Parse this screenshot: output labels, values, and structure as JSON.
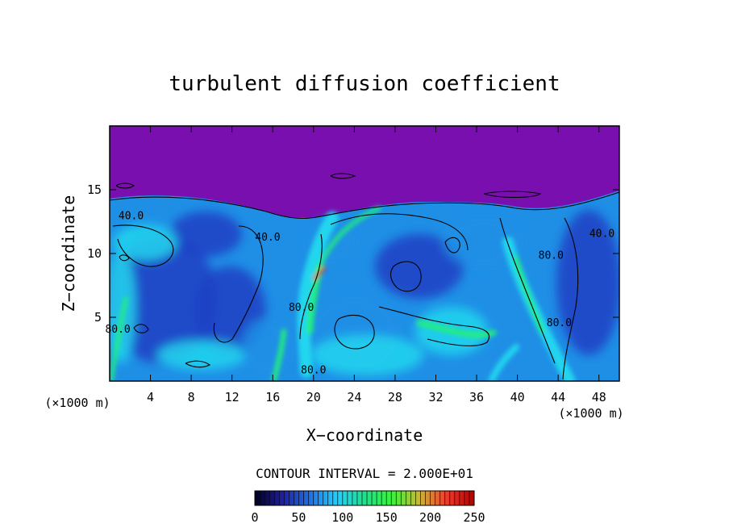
{
  "chart_data": {
    "type": "heatmap",
    "title": "turbulent diffusion coefficient",
    "xlabel": "X−coordinate",
    "ylabel": "Z−coordinate",
    "x_unit": "(×1000 m)",
    "z_unit": "(×1000 m)",
    "xlim": [
      0,
      50
    ],
    "zlim": [
      0,
      20
    ],
    "x_ticks": [
      4,
      8,
      12,
      16,
      20,
      24,
      28,
      32,
      36,
      40,
      44,
      48
    ],
    "z_ticks": [
      5,
      10,
      15
    ],
    "contour_interval_text": "CONTOUR INTERVAL = 2.000E+01",
    "contour_labels": [
      {
        "text": "40.0",
        "x": 2.1,
        "z": 12.7
      },
      {
        "text": "40.0",
        "x": 15.5,
        "z": 11.0
      },
      {
        "text": "80.0",
        "x": 18.8,
        "z": 5.5
      },
      {
        "text": "80.0",
        "x": 20.0,
        "z": 0.6
      },
      {
        "text": "80.0",
        "x": 0.8,
        "z": 3.8
      },
      {
        "text": "40.0",
        "x": 48.3,
        "z": 11.3
      },
      {
        "text": "80.0",
        "x": 43.3,
        "z": 9.6
      },
      {
        "text": "80.0",
        "x": 44.1,
        "z": 4.3
      }
    ],
    "colorbar": {
      "range": [
        0,
        250
      ],
      "ticks": [
        0,
        50,
        100,
        150,
        200,
        250
      ],
      "colors": [
        "#000020",
        "#1f1f9e",
        "#1f6fe6",
        "#1fd0ff",
        "#21e08a",
        "#3cf23c",
        "#c9b73a",
        "#f03a2a",
        "#b00000"
      ]
    },
    "palette": {
      "background": "#7a0fb0",
      "low": "#1f3fc4",
      "mid": "#1f8fe6",
      "high": "#22d6ee",
      "peak": "#23f07a",
      "max": "#e02a1a"
    }
  }
}
